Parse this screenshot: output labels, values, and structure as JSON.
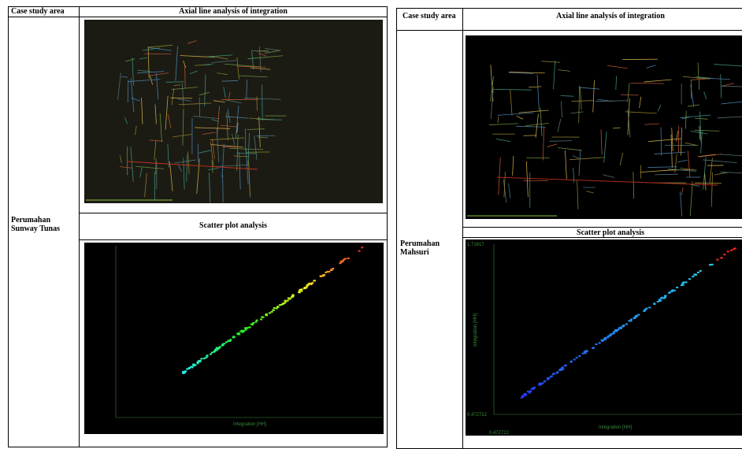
{
  "tables": [
    {
      "header": [
        "Case study area",
        "Axial line analysis of integration"
      ],
      "area": "Perumahan Sunway Tunas",
      "scatter_heading": "Scatter plot analysis",
      "scatter": {
        "x_label": "Integration [HH]"
      }
    },
    {
      "header": [
        "Case study area",
        "Axial line analysis of integration"
      ],
      "area": "Perumahan Mahsuri",
      "scatter_heading": "Scatter plot analysis",
      "scatter": {
        "y_max_label": "1.71617",
        "y_min_label": "0.472722",
        "x_min_label": "0.472722",
        "y_label": "Integration [HH]",
        "x_label": "Integration [HH]"
      }
    }
  ]
}
